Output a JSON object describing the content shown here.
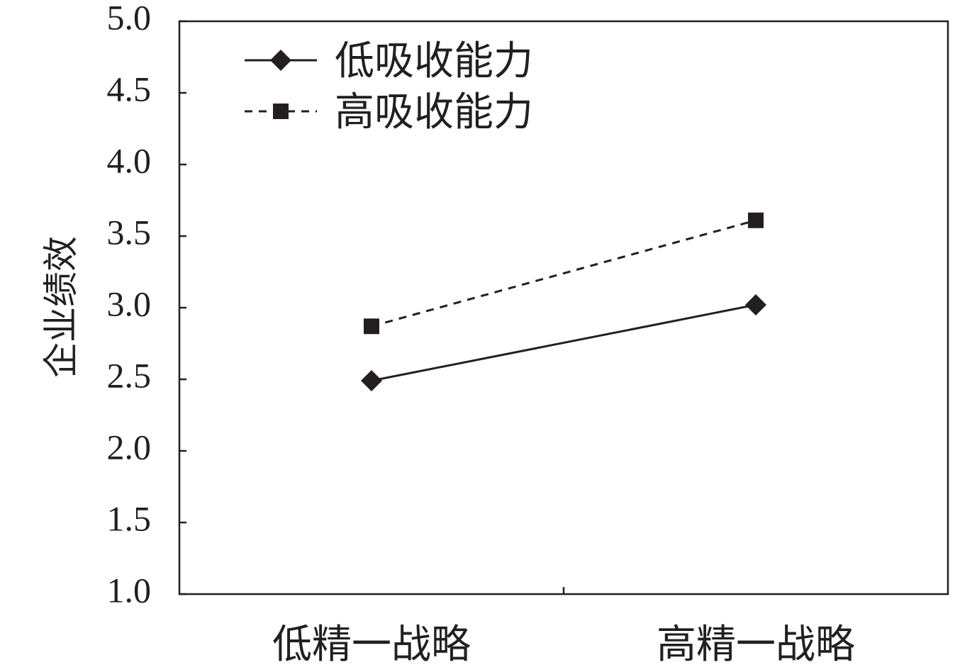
{
  "chart_data": {
    "type": "line",
    "categories": [
      "低精一战略",
      "高精一战略"
    ],
    "series": [
      {
        "name": "低吸收能力",
        "values": [
          2.49,
          3.02
        ],
        "marker": "diamond",
        "line": "solid"
      },
      {
        "name": "高吸收能力",
        "values": [
          2.87,
          3.61
        ],
        "marker": "square",
        "line": "dashed"
      }
    ],
    "title": "",
    "xlabel": "",
    "ylabel": "企业绩效",
    "ylim": [
      1.0,
      5.0
    ],
    "yticks": [
      "1.0",
      "1.5",
      "2.0",
      "2.5",
      "3.0",
      "3.5",
      "4.0",
      "4.5",
      "5.0"
    ],
    "grid": false,
    "legend": "top-left",
    "colors": {
      "ink": "#231f20",
      "background": "#ffffff"
    }
  }
}
